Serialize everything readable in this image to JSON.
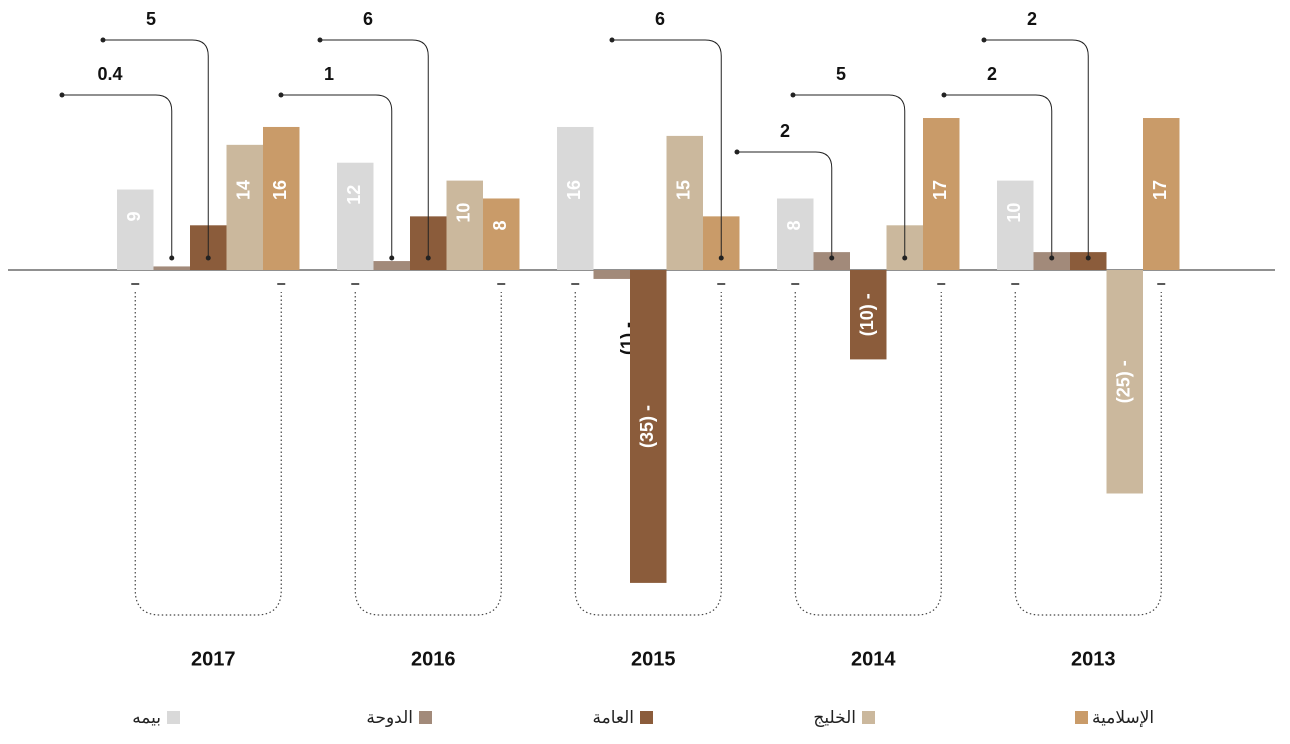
{
  "chart_data": {
    "type": "bar",
    "categories": [
      "2017",
      "2016",
      "2015",
      "2014",
      "2013"
    ],
    "series": [
      {
        "name": "بيمه",
        "color": "#d9d9d9",
        "values": [
          9,
          12,
          16,
          8,
          10
        ],
        "value_labels": [
          "9",
          "12",
          "16",
          "8",
          "10"
        ]
      },
      {
        "name": "الدوحة",
        "color": "#a28a7a",
        "values": [
          0.4,
          1,
          -1,
          2,
          2
        ],
        "value_labels": [
          "0.4",
          "1",
          "(1) -",
          "2",
          "2"
        ]
      },
      {
        "name": "العامة",
        "color": "#8b5c3b",
        "values": [
          5,
          6,
          -35,
          -10,
          2
        ],
        "value_labels": [
          "5",
          "6",
          "(35) -",
          "(10) -",
          "2"
        ]
      },
      {
        "name": "الخليج",
        "color": "#cbb89d",
        "values": [
          14,
          10,
          15,
          5,
          -25
        ],
        "value_labels": [
          "14",
          "10",
          "15",
          "5",
          "(25) -"
        ]
      },
      {
        "name": "الإسلامية",
        "color": "#c99b69",
        "values": [
          16,
          8,
          6,
          17,
          17
        ],
        "value_labels": [
          "16",
          "8",
          "6",
          "17",
          "17"
        ]
      }
    ]
  }
}
